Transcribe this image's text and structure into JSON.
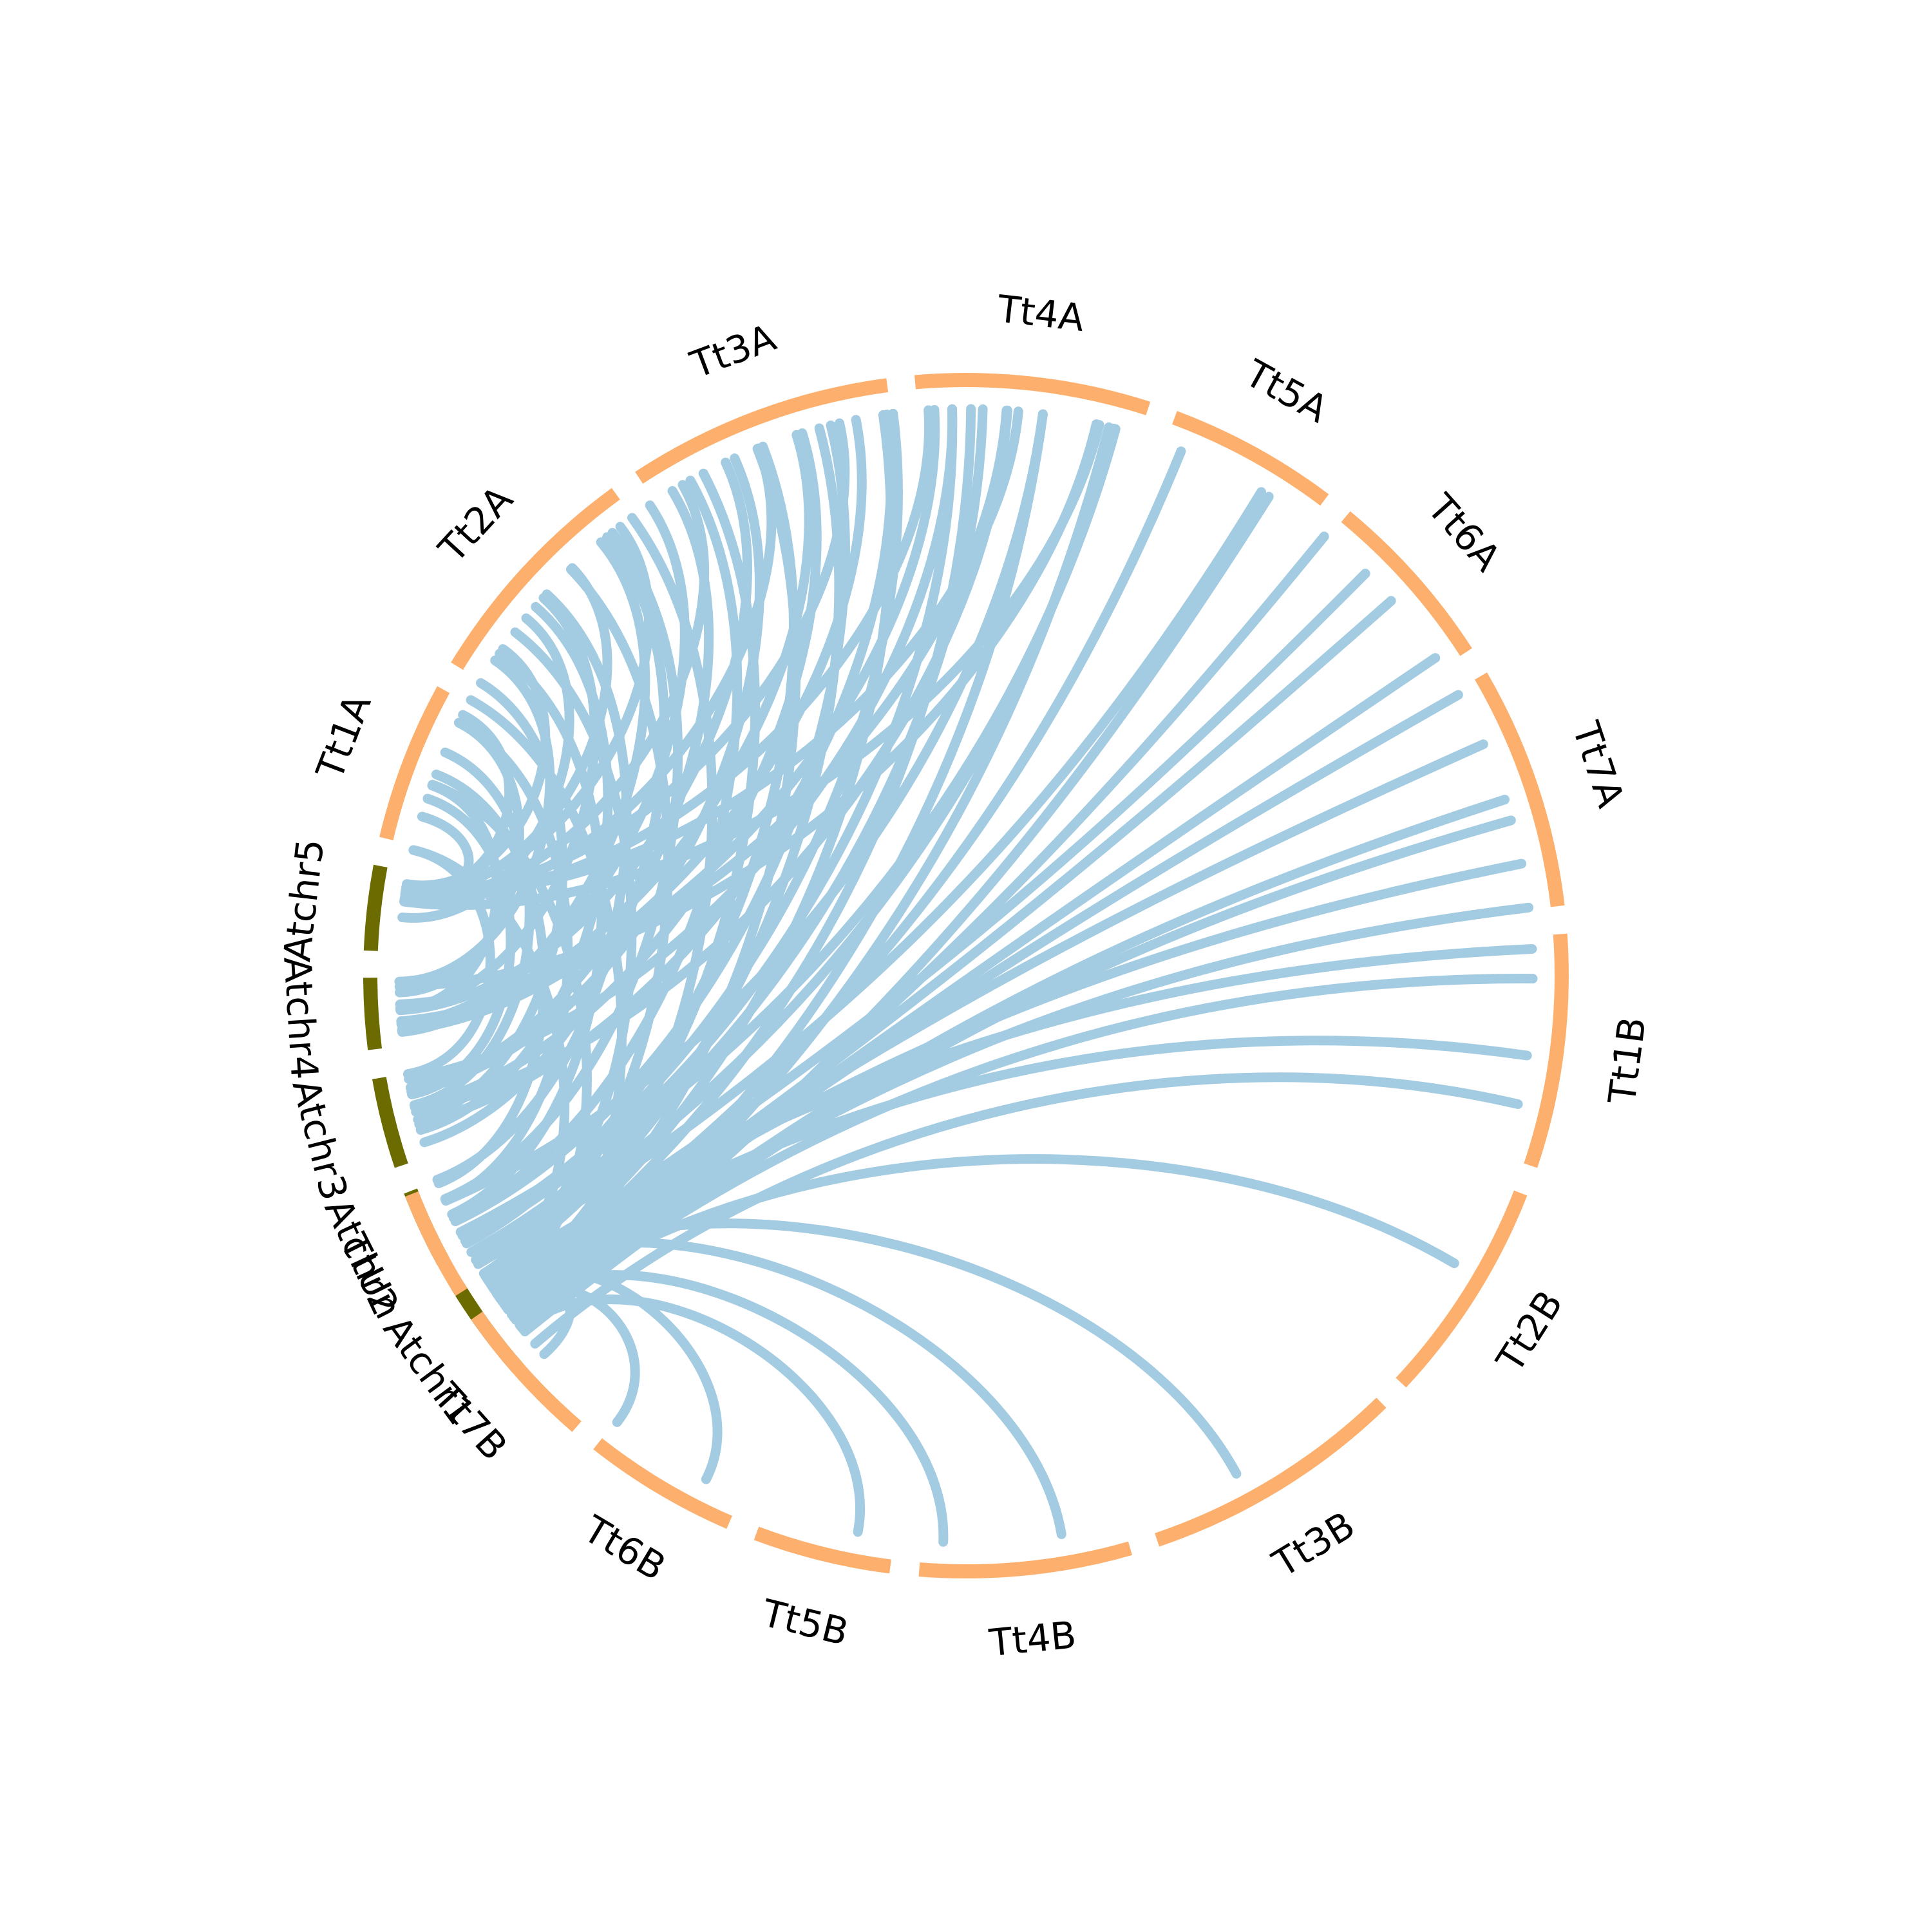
{
  "chart_data": {
    "type": "chord",
    "colors": {
      "arabidopsis": "#6b6b00",
      "wheat": "#fdb06e",
      "link": "#a3cbe1"
    },
    "segments": [
      {
        "name": "Atchr1",
        "group": "arabidopsis",
        "start": 138.8,
        "end": 148.6
      },
      {
        "name": "Atchr2",
        "group": "arabidopsis",
        "start": 151.3,
        "end": 158.8
      },
      {
        "name": "Atchr3",
        "group": "arabidopsis",
        "start": 161.4,
        "end": 170.1
      },
      {
        "name": "Atchr4",
        "group": "arabidopsis",
        "start": 172.9,
        "end": 179.8
      },
      {
        "name": "Atchr5",
        "group": "arabidopsis",
        "start": 182.4,
        "end": 190.6
      },
      {
        "name": "Tt1A",
        "group": "wheat",
        "start": 193.3,
        "end": 208.7
      },
      {
        "name": "Tt2A",
        "group": "wheat",
        "start": 211.3,
        "end": 234.0
      },
      {
        "name": "Tt3A",
        "group": "wheat",
        "start": 236.7,
        "end": 262.4
      },
      {
        "name": "Tt4A",
        "group": "wheat",
        "start": 265.1,
        "end": 287.8
      },
      {
        "name": "Tt5A",
        "group": "wheat",
        "start": 290.5,
        "end": 307.0
      },
      {
        "name": "Tt6A",
        "group": "wheat",
        "start": 309.6,
        "end": 327.1
      },
      {
        "name": "Tt7A",
        "group": "wheat",
        "start": 329.8,
        "end": 353.3
      },
      {
        "name": "Tt1B",
        "group": "wheat",
        "start": 356.0,
        "end": 18.6
      },
      {
        "name": "Tt2B",
        "group": "wheat",
        "start": 21.4,
        "end": 43.1
      },
      {
        "name": "Tt3B",
        "group": "wheat",
        "start": 45.8,
        "end": 71.3
      },
      {
        "name": "Tt4B",
        "group": "wheat",
        "start": 74.0,
        "end": 94.5
      },
      {
        "name": "Tt5B",
        "group": "wheat",
        "start": 97.3,
        "end": 110.6
      },
      {
        "name": "Tt6B",
        "group": "wheat",
        "start": 113.4,
        "end": 128.2
      },
      {
        "name": "Tt7B",
        "group": "wheat",
        "start": 130.8,
        "end": 145.2
      },
      {
        "name": "TtUn",
        "group": "wheat",
        "start": 147.9,
        "end": 158.5
      }
    ],
    "links": [
      [
        188.4,
        196.3
      ],
      [
        188.8,
        207.4
      ],
      [
        189.3,
        215.2
      ],
      [
        185.9,
        219.1
      ],
      [
        188.7,
        226.0
      ],
      [
        189.3,
        232.4
      ],
      [
        188.2,
        240.0
      ],
      [
        187.8,
        248.5
      ],
      [
        189.0,
        257.1
      ],
      [
        188.6,
        266.2
      ],
      [
        189.0,
        275.3
      ],
      [
        187.5,
        283.6
      ],
      [
        176.6,
        199.6
      ],
      [
        178.3,
        206.5
      ],
      [
        179.4,
        213.8
      ],
      [
        176.7,
        221.8
      ],
      [
        174.3,
        229.9
      ],
      [
        175.1,
        236.1
      ],
      [
        176.5,
        244.9
      ],
      [
        175.1,
        252.6
      ],
      [
        174.5,
        258.8
      ],
      [
        175.4,
        266.8
      ],
      [
        177.1,
        274.1
      ],
      [
        178.9,
        283.3
      ],
      [
        170.0,
        192.8
      ],
      [
        167.9,
        198.2
      ],
      [
        166.8,
        203.2
      ],
      [
        165.3,
        211.1
      ],
      [
        164.2,
        220.6
      ],
      [
        162.9,
        230.7
      ],
      [
        168.6,
        238.8
      ],
      [
        168.2,
        245.9
      ],
      [
        166.6,
        253.2
      ],
      [
        164.8,
        262.0
      ],
      [
        169.5,
        268.6
      ],
      [
        166.1,
        274.2
      ],
      [
        158.5,
        200.8
      ],
      [
        156.6,
        206.5
      ],
      [
        155.1,
        214.6
      ],
      [
        158.9,
        222.3
      ],
      [
        156.8,
        231.4
      ],
      [
        154.7,
        240.9
      ],
      [
        151.8,
        249.0
      ],
      [
        154.3,
        256.2
      ],
      [
        152.7,
        262.6
      ],
      [
        152.1,
        268.6
      ],
      [
        156.6,
        277.8
      ],
      [
        153.1,
        285.3
      ],
      [
        147.5,
        192.8
      ],
      [
        145.8,
        199.7
      ],
      [
        143.3,
        209.1
      ],
      [
        148.3,
        217.3
      ],
      [
        147.9,
        225.8
      ],
      [
        145.6,
        233.9
      ],
      [
        148.0,
        242.4
      ],
      [
        145.3,
        248.4
      ],
      [
        148.1,
        255.0
      ],
      [
        146.4,
        261.6
      ],
      [
        145.6,
        270.5
      ],
      [
        142.6,
        277.8
      ],
      [
        142.0,
        284.6
      ],
      [
        145.5,
        292.3
      ],
      [
        141.4,
        302.3
      ],
      [
        143.0,
        309.2
      ],
      [
        144.9,
        318.6
      ],
      [
        144.0,
        325.9
      ],
      [
        145.6,
        335.9
      ],
      [
        141.1,
        344.1
      ],
      [
        143.0,
        353.1
      ],
      [
        141.8,
        0.3
      ],
      [
        145.7,
        8.1
      ],
      [
        139.5,
        13.1
      ],
      [
        147.7,
        357.3
      ],
      [
        146.0,
        348.6
      ],
      [
        141.8,
        341.9
      ],
      [
        143.9,
        330.3
      ],
      [
        147.3,
        314.8
      ],
      [
        149.4,
        301.4
      ],
      [
        149.9,
        285.1
      ],
      [
        150.8,
        271.7
      ],
      [
        146.7,
        117.3
      ],
      [
        144.6,
        128.0
      ],
      [
        145.2,
        138.1
      ],
      [
        141.6,
        101.0
      ],
      [
        144.3,
        92.3
      ],
      [
        147.6,
        80.3
      ],
      [
        147.0,
        61.5
      ],
      [
        142.9,
        30.5
      ]
    ]
  }
}
